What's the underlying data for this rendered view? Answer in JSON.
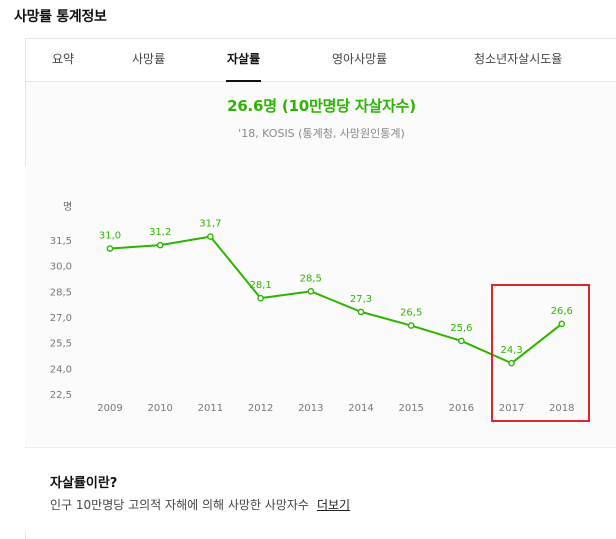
{
  "page_title": "사망률 통계정보",
  "tabs": [
    {
      "label": "요약",
      "active": false
    },
    {
      "label": "사망률",
      "active": false
    },
    {
      "label": "자살률",
      "active": true
    },
    {
      "label": "영아사망률",
      "active": false
    },
    {
      "label": "청소년자살시도율",
      "active": false
    }
  ],
  "summary": {
    "main": "26.6명 (10만명당 자살자수)",
    "sub": "'18, KOSIS (통계청, 사망원인통계)"
  },
  "info": {
    "title": "자살률이란?",
    "desc": "인구 10만명당 고의적 자해에 의해 사망한 사망자수",
    "link": "더보기"
  },
  "colors": {
    "accent": "#2db400",
    "highlight": "#e0252b"
  },
  "chart_data": {
    "type": "line",
    "ylabel": "명",
    "categories": [
      "2009",
      "2010",
      "2011",
      "2012",
      "2013",
      "2014",
      "2015",
      "2016",
      "2017",
      "2018"
    ],
    "values": [
      31.0,
      31.2,
      31.7,
      28.1,
      28.5,
      27.3,
      26.5,
      25.6,
      24.3,
      26.6
    ],
    "data_labels": [
      "31,0",
      "31,2",
      "31,7",
      "28,1",
      "28,5",
      "27,3",
      "26,5",
      "25,6",
      "24,3",
      "26,6"
    ],
    "yticks": [
      "22,5",
      "24,0",
      "25,5",
      "27,0",
      "28,5",
      "30,0",
      "31,5"
    ],
    "ytick_values": [
      22.5,
      24.0,
      25.5,
      27.0,
      28.5,
      30.0,
      31.5
    ],
    "ylim": [
      22.5,
      31.5
    ],
    "grid": false,
    "legend": "none"
  }
}
